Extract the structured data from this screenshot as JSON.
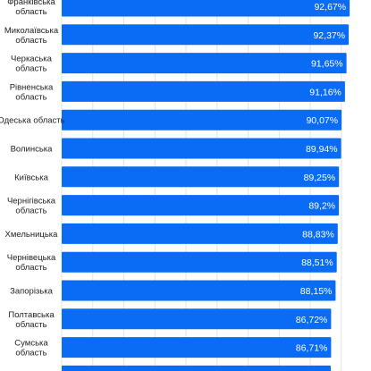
{
  "chart_data": {
    "type": "bar",
    "orientation": "horizontal",
    "title": "",
    "xlabel": "",
    "ylabel": "",
    "grid": true,
    "bar_color": "#0a6cf5",
    "label_color": "#ffffff",
    "xlim": [
      0,
      93.5
    ],
    "categories": [
      [
        "Франківська",
        "область"
      ],
      [
        "Миколаївська",
        "область"
      ],
      [
        "Черкаська",
        "область"
      ],
      [
        "Рівненська",
        "область"
      ],
      [
        "Одеська область"
      ],
      [
        "Волинська"
      ],
      [
        "Київська"
      ],
      [
        "Чернігівська",
        "область"
      ],
      [
        "Хмельницька"
      ],
      [
        "Чернівецька",
        "область"
      ],
      [
        "Запорізька"
      ],
      [
        "Полтавська",
        "область"
      ],
      [
        "Сумська",
        "область"
      ],
      [
        ""
      ]
    ],
    "values": [
      92.67,
      92.37,
      91.65,
      91.16,
      90.07,
      89.94,
      89.25,
      89.2,
      88.83,
      88.51,
      88.15,
      86.72,
      86.71,
      86.6
    ],
    "value_labels": [
      "92,67%",
      "92,37%",
      "91,65%",
      "91,16%",
      "90,07%",
      "89,94%",
      "89,25%",
      "89,2%",
      "88,83%",
      "88,51%",
      "88,15%",
      "86,72%",
      "86,71%",
      ""
    ]
  }
}
